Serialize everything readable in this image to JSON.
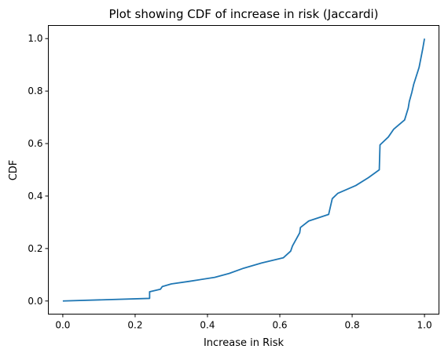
{
  "chart_data": {
    "type": "line",
    "title": "Plot showing CDF of increase in risk (Jaccardi)",
    "xlabel": "Increase in Risk",
    "ylabel": "CDF",
    "xlim": [
      -0.04,
      1.04
    ],
    "ylim": [
      -0.05,
      1.05
    ],
    "xticks": [
      0.0,
      0.2,
      0.4,
      0.6,
      0.8,
      1.0
    ],
    "xtick_labels": [
      "0.0",
      "0.2",
      "0.4",
      "0.6",
      "0.8",
      "1.0"
    ],
    "yticks": [
      0.0,
      0.2,
      0.4,
      0.6,
      0.8,
      1.0
    ],
    "ytick_labels": [
      "0.0",
      "0.2",
      "0.4",
      "0.6",
      "0.8",
      "1.0"
    ],
    "grid": false,
    "legend": false,
    "series": [
      {
        "color": "#1f77b4",
        "x": [
          0.0,
          0.24,
          0.24,
          0.27,
          0.275,
          0.3,
          0.35,
          0.42,
          0.46,
          0.5,
          0.55,
          0.61,
          0.63,
          0.635,
          0.655,
          0.657,
          0.68,
          0.735,
          0.74,
          0.745,
          0.76,
          0.81,
          0.845,
          0.875,
          0.877,
          0.9,
          0.915,
          0.945,
          0.955,
          0.958,
          0.965,
          0.97,
          0.985,
          0.995,
          1.0
        ],
        "y": [
          0.0,
          0.01,
          0.035,
          0.045,
          0.055,
          0.065,
          0.075,
          0.09,
          0.105,
          0.125,
          0.145,
          0.165,
          0.19,
          0.21,
          0.26,
          0.28,
          0.305,
          0.33,
          0.36,
          0.39,
          0.41,
          0.44,
          0.47,
          0.5,
          0.595,
          0.625,
          0.655,
          0.69,
          0.735,
          0.76,
          0.795,
          0.825,
          0.89,
          0.96,
          1.0
        ]
      }
    ]
  }
}
